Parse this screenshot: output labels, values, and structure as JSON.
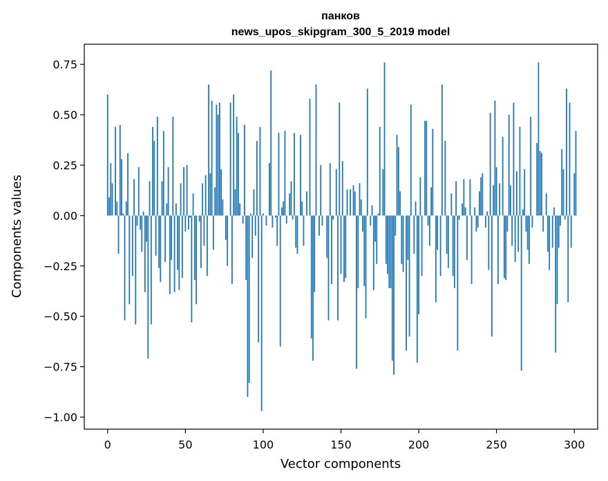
{
  "chart_data": {
    "type": "bar",
    "title_line1": "панков",
    "title_line2": "news_upos_skipgram_300_5_2019 model",
    "xlabel": "Vector components",
    "ylabel": "Components values",
    "xlim": [
      -15,
      315
    ],
    "ylim": [
      -1.06,
      0.85
    ],
    "x_ticks": [
      0,
      50,
      100,
      150,
      200,
      250,
      300
    ],
    "x_tick_labels": [
      "0",
      "50",
      "100",
      "150",
      "200",
      "250",
      "300"
    ],
    "y_ticks": [
      0.75,
      0.5,
      0.25,
      0.0,
      -0.25,
      -0.5,
      -0.75,
      -1.0
    ],
    "y_tick_labels": [
      "0.75",
      "0.50",
      "0.25",
      "0.00",
      "−0.25",
      "−0.50",
      "−0.75",
      "−1.00"
    ],
    "color": "#1f77b4",
    "values": [
      0.6,
      0.09,
      0.26,
      0.16,
      0.0,
      0.44,
      0.07,
      -0.19,
      0.45,
      0.28,
      0.01,
      -0.52,
      0.07,
      0.31,
      -0.44,
      0.0,
      -0.3,
      0.18,
      -0.54,
      -0.05,
      0.24,
      -0.07,
      -0.18,
      0.02,
      -0.38,
      -0.13,
      -0.71,
      0.17,
      -0.54,
      0.44,
      0.37,
      -0.2,
      0.49,
      -0.26,
      -0.33,
      0.17,
      0.42,
      -0.23,
      0.06,
      0.24,
      -0.39,
      -0.22,
      0.49,
      -0.38,
      0.06,
      -0.27,
      -0.37,
      0.16,
      -0.31,
      0.24,
      -0.08,
      0.25,
      -0.07,
      -0.01,
      -0.53,
      0.11,
      -0.32,
      -0.44,
      0.0,
      -0.03,
      -0.26,
      0.16,
      -0.15,
      0.2,
      -0.3,
      0.65,
      0.21,
      0.57,
      -0.17,
      0.14,
      0.55,
      0.5,
      0.56,
      0.23,
      0.08,
      0.0,
      -0.12,
      -0.25,
      0.0,
      0.56,
      -0.34,
      0.6,
      0.13,
      0.49,
      0.41,
      0.06,
      0.0,
      -0.04,
      0.45,
      -0.32,
      -0.9,
      -0.83,
      0.01,
      -0.21,
      0.13,
      -0.1,
      0.37,
      -0.63,
      0.44,
      -0.97,
      0.01,
      0.0,
      -0.05,
      0.0,
      0.26,
      0.72,
      -0.06,
      0.0,
      -0.01,
      -0.15,
      0.41,
      -0.65,
      0.04,
      0.07,
      0.42,
      -0.04,
      0.0,
      0.11,
      0.17,
      -0.02,
      0.41,
      -0.16,
      -0.19,
      0.0,
      0.4,
      0.07,
      -0.15,
      0.0,
      0.12,
      0.0,
      0.58,
      -0.61,
      -0.72,
      -0.38,
      0.65,
      0.0,
      -0.1,
      0.25,
      -0.05,
      0.0,
      0.0,
      -0.21,
      -0.52,
      0.26,
      -0.34,
      -0.02,
      0.0,
      0.23,
      -0.52,
      0.56,
      -0.29,
      0.27,
      -0.33,
      -0.31,
      0.13,
      0.0,
      0.13,
      0.0,
      0.15,
      0.12,
      -0.76,
      -0.36,
      0.16,
      0.08,
      -0.08,
      -0.35,
      -0.51,
      0.63,
      0.0,
      -0.05,
      0.05,
      -0.37,
      -0.13,
      -0.24,
      0.01,
      0.44,
      0.0,
      0.23,
      0.76,
      -0.24,
      -0.29,
      -0.36,
      -0.36,
      -0.72,
      -0.79,
      -0.1,
      0.4,
      0.34,
      0.12,
      -0.24,
      -0.28,
      0.0,
      -0.67,
      -0.22,
      -0.6,
      0.55,
      0.0,
      -0.19,
      0.07,
      -0.73,
      -0.49,
      0.19,
      -0.3,
      0.0,
      0.47,
      0.47,
      -0.05,
      -0.15,
      0.14,
      0.43,
      0.0,
      -0.43,
      -0.17,
      0.0,
      -0.3,
      0.65,
      0.0,
      0.37,
      -0.19,
      -0.26,
      0.0,
      0.11,
      -0.3,
      -0.36,
      0.17,
      -0.67,
      -0.02,
      0.0,
      0.06,
      0.18,
      0.04,
      -0.22,
      0.0,
      0.18,
      -0.34,
      0.0,
      0.04,
      -0.08,
      -0.06,
      0.12,
      0.19,
      0.21,
      0.0,
      -0.06,
      0.02,
      -0.27,
      0.51,
      -0.6,
      0.15,
      0.57,
      0.24,
      -0.34,
      0.16,
      0.0,
      0.39,
      -0.31,
      -0.32,
      -0.08,
      0.5,
      0.15,
      -0.15,
      0.56,
      -0.23,
      0.22,
      -0.18,
      0.44,
      -0.77,
      0.03,
      0.23,
      -0.08,
      -0.17,
      -0.24,
      0.49,
      -0.06,
      0.0,
      0.0,
      0.36,
      0.76,
      0.32,
      0.31,
      -0.08,
      0.0,
      0.11,
      -0.18,
      -0.27,
      0.0,
      -0.16,
      0.04,
      -0.68,
      -0.44,
      -0.16,
      -0.05,
      0.33,
      0.23,
      -0.02,
      0.63,
      -0.43,
      0.56,
      -0.16,
      0.0,
      0.21,
      0.42,
      0.0
    ]
  }
}
